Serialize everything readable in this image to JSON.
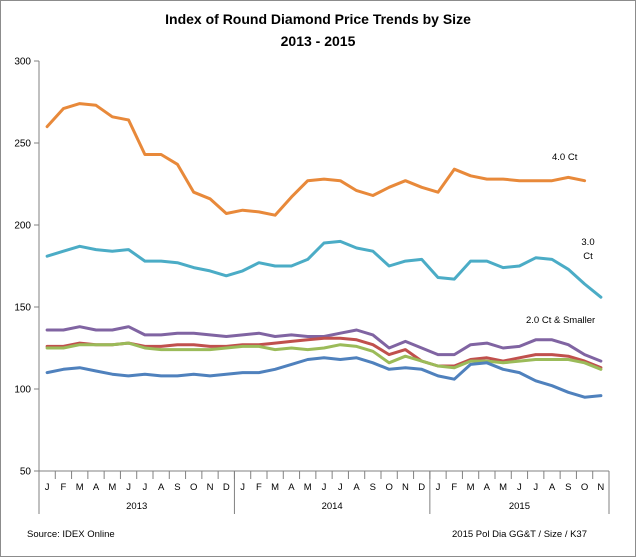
{
  "title_line1": "Index of Round Diamond Price Trends by Size",
  "title_line2": "2013 - 2015",
  "source": "Source:  IDEX Online",
  "credit": "2015 Pol Dia GG&T / Size / K37",
  "chart_data": {
    "type": "line",
    "title": "Index of Round Diamond Price Trends by Size 2013 - 2015",
    "month_labels": [
      "J",
      "F",
      "M",
      "A",
      "M",
      "J",
      "J",
      "A",
      "S",
      "O",
      "N",
      "D",
      "J",
      "F",
      "M",
      "A",
      "M",
      "J",
      "J",
      "A",
      "S",
      "O",
      "N",
      "D",
      "J",
      "F",
      "M",
      "A",
      "M",
      "J",
      "J",
      "A",
      "S",
      "O",
      "N"
    ],
    "year_labels": [
      "2013",
      "2014",
      "2015"
    ],
    "ylim": [
      50,
      300
    ],
    "yticks": [
      50,
      100,
      150,
      200,
      250,
      300
    ],
    "grid": false,
    "legend": "none",
    "series": [
      {
        "name": "4.0 Ct",
        "color": "#e8893a",
        "values": [
          260,
          271,
          274,
          273,
          266,
          264,
          243,
          243,
          237,
          220,
          216,
          207,
          209,
          208,
          206,
          217,
          227,
          228,
          227,
          221,
          218,
          223,
          227,
          223,
          220,
          234,
          230,
          228,
          228,
          227,
          227,
          227,
          229,
          227,
          null
        ]
      },
      {
        "name": "3.0 Ct",
        "color": "#4bacc6",
        "values": [
          181,
          184,
          187,
          185,
          184,
          185,
          178,
          178,
          177,
          174,
          172,
          169,
          172,
          177,
          175,
          175,
          179,
          189,
          190,
          186,
          184,
          175,
          178,
          179,
          168,
          167,
          178,
          178,
          174,
          175,
          180,
          179,
          173,
          164,
          156
        ]
      },
      {
        "name": "2.0 Ct & Smaller",
        "color": "#8064a2",
        "values": [
          136,
          136,
          138,
          136,
          136,
          138,
          133,
          133,
          134,
          134,
          133,
          132,
          133,
          134,
          132,
          133,
          132,
          132,
          134,
          136,
          133,
          125,
          129,
          125,
          121,
          121,
          127,
          128,
          125,
          126,
          130,
          130,
          127,
          121,
          117
        ]
      },
      {
        "name": "",
        "color": "#c0504d",
        "values": [
          126,
          126,
          128,
          127,
          127,
          128,
          126,
          126,
          127,
          127,
          126,
          126,
          127,
          127,
          128,
          129,
          130,
          131,
          131,
          130,
          127,
          121,
          124,
          117,
          114,
          114,
          118,
          119,
          117,
          119,
          121,
          121,
          120,
          117,
          113
        ]
      },
      {
        "name": "",
        "color": "#9bbb59",
        "values": [
          125,
          125,
          127,
          127,
          127,
          128,
          125,
          124,
          124,
          124,
          124,
          125,
          126,
          126,
          124,
          125,
          124,
          125,
          127,
          126,
          123,
          116,
          120,
          117,
          114,
          113,
          117,
          117,
          116,
          117,
          118,
          118,
          118,
          116,
          112
        ]
      },
      {
        "name": "",
        "color": "#4f81bd",
        "values": [
          110,
          112,
          113,
          111,
          109,
          108,
          109,
          108,
          108,
          109,
          108,
          109,
          110,
          110,
          112,
          115,
          118,
          119,
          118,
          119,
          116,
          112,
          113,
          112,
          108,
          106,
          115,
          116,
          112,
          110,
          105,
          102,
          98,
          95,
          96
        ]
      }
    ],
    "annotations": [
      {
        "text": "4.0 Ct",
        "series": "4.0 Ct"
      },
      {
        "text": "3.0",
        "series": "3.0 Ct"
      },
      {
        "text": "Ct",
        "series": "3.0 Ct"
      },
      {
        "text": "2.0 Ct & Smaller",
        "series": "2.0 Ct & Smaller"
      }
    ]
  }
}
